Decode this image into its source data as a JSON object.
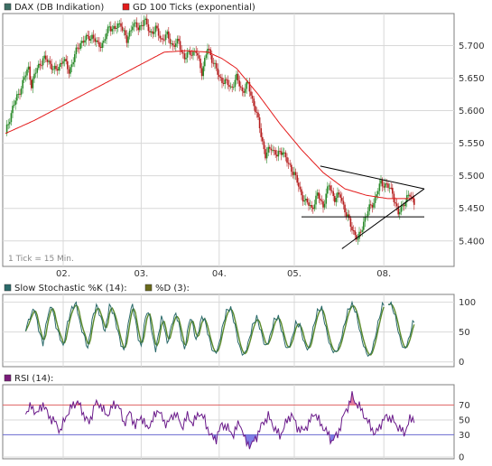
{
  "chart_data": [
    {
      "type": "candlestick",
      "legend": [
        {
          "label": "DAX (DB Indikation)",
          "color": "#3c6e64"
        },
        {
          "label": "GD 100 Ticks (exponential)",
          "color": "#e31b1b"
        }
      ],
      "note": "1 Tick = 15 Min.",
      "x_ticks": [
        "02.",
        "03.",
        "04.",
        "05.",
        "08."
      ],
      "y_ticks": [
        "5.700",
        "5.650",
        "5.600",
        "5.550",
        "5.500",
        "5.450",
        "5.400"
      ],
      "y_tick_values": [
        5700,
        5650,
        5600,
        5550,
        5500,
        5450,
        5400
      ],
      "ylim": [
        5365,
        5745
      ],
      "up_color": "#2a8a2a",
      "down_color": "#b51e1e",
      "close_anchors": [
        [
          0,
          5565
        ],
        [
          5,
          5605
        ],
        [
          9,
          5625
        ],
        [
          13,
          5650
        ],
        [
          16,
          5665
        ],
        [
          18,
          5640
        ],
        [
          22,
          5665
        ],
        [
          26,
          5680
        ],
        [
          30,
          5675
        ],
        [
          35,
          5660
        ],
        [
          40,
          5680
        ],
        [
          44,
          5660
        ],
        [
          48,
          5685
        ],
        [
          52,
          5705
        ],
        [
          56,
          5710
        ],
        [
          60,
          5715
        ],
        [
          64,
          5700
        ],
        [
          68,
          5705
        ],
        [
          72,
          5730
        ],
        [
          76,
          5725
        ],
        [
          80,
          5735
        ],
        [
          84,
          5705
        ],
        [
          88,
          5735
        ],
        [
          92,
          5725
        ],
        [
          96,
          5740
        ],
        [
          100,
          5720
        ],
        [
          104,
          5725
        ],
        [
          108,
          5710
        ],
        [
          112,
          5715
        ],
        [
          116,
          5700
        ],
        [
          120,
          5705
        ],
        [
          124,
          5680
        ],
        [
          128,
          5690
        ],
        [
          132,
          5690
        ],
        [
          136,
          5660
        ],
        [
          140,
          5695
        ],
        [
          144,
          5675
        ],
        [
          148,
          5650
        ],
        [
          152,
          5645
        ],
        [
          156,
          5635
        ],
        [
          160,
          5650
        ],
        [
          164,
          5630
        ],
        [
          168,
          5640
        ],
        [
          172,
          5610
        ],
        [
          176,
          5575
        ],
        [
          180,
          5530
        ],
        [
          184,
          5545
        ],
        [
          188,
          5530
        ],
        [
          192,
          5540
        ],
        [
          196,
          5515
        ],
        [
          200,
          5505
        ],
        [
          204,
          5475
        ],
        [
          208,
          5460
        ],
        [
          212,
          5450
        ],
        [
          216,
          5470
        ],
        [
          220,
          5455
        ],
        [
          224,
          5485
        ],
        [
          228,
          5465
        ],
        [
          232,
          5470
        ],
        [
          236,
          5440
        ],
        [
          240,
          5420
        ],
        [
          244,
          5400
        ],
        [
          248,
          5430
        ],
        [
          252,
          5450
        ],
        [
          256,
          5465
        ],
        [
          260,
          5490
        ],
        [
          264,
          5485
        ],
        [
          268,
          5475
        ],
        [
          272,
          5440
        ],
        [
          276,
          5460
        ],
        [
          280,
          5470
        ],
        [
          283,
          5460
        ]
      ],
      "ema_anchors": [
        [
          0,
          5565
        ],
        [
          20,
          5585
        ],
        [
          50,
          5620
        ],
        [
          80,
          5655
        ],
        [
          110,
          5690
        ],
        [
          125,
          5692
        ],
        [
          140,
          5690
        ],
        [
          150,
          5680
        ],
        [
          160,
          5665
        ],
        [
          175,
          5625
        ],
        [
          190,
          5580
        ],
        [
          205,
          5540
        ],
        [
          220,
          5505
        ],
        [
          235,
          5480
        ],
        [
          250,
          5470
        ],
        [
          265,
          5465
        ],
        [
          283,
          5465
        ]
      ],
      "trendlines": [
        {
          "from": [
            218,
            5515
          ],
          "to": [
            290,
            5480
          ]
        },
        {
          "from": [
            233,
            5388
          ],
          "to": [
            290,
            5480
          ]
        },
        {
          "from": [
            205,
            5437
          ],
          "to": [
            290,
            5437
          ]
        }
      ]
    },
    {
      "type": "line",
      "legend": [
        {
          "label": "Slow Stochastic %K (14):",
          "color": "#2a6a6a"
        },
        {
          "label": "%D (3):",
          "color": "#6a6a1a"
        }
      ],
      "y_ticks": [
        "100",
        "50",
        "0"
      ],
      "y_tick_values": [
        100,
        50,
        0
      ],
      "ylim": [
        -5,
        110
      ],
      "colors": {
        "k": "#2a6a6a",
        "d": "#5a8a2a"
      },
      "k_anchors": [
        [
          14,
          55
        ],
        [
          17,
          75
        ],
        [
          20,
          90
        ],
        [
          23,
          55
        ],
        [
          26,
          30
        ],
        [
          29,
          75
        ],
        [
          32,
          95
        ],
        [
          35,
          60
        ],
        [
          38,
          40
        ],
        [
          40,
          25
        ],
        [
          43,
          65
        ],
        [
          46,
          90
        ],
        [
          49,
          98
        ],
        [
          52,
          60
        ],
        [
          55,
          40
        ],
        [
          57,
          22
        ],
        [
          60,
          70
        ],
        [
          63,
          95
        ],
        [
          66,
          75
        ],
        [
          69,
          50
        ],
        [
          72,
          95
        ],
        [
          75,
          80
        ],
        [
          78,
          50
        ],
        [
          80,
          30
        ],
        [
          82,
          18
        ],
        [
          84,
          45
        ],
        [
          86,
          80
        ],
        [
          88,
          95
        ],
        [
          90,
          70
        ],
        [
          92,
          40
        ],
        [
          94,
          25
        ],
        [
          96,
          60
        ],
        [
          98,
          85
        ],
        [
          100,
          75
        ],
        [
          102,
          40
        ],
        [
          104,
          20
        ],
        [
          106,
          45
        ],
        [
          108,
          75
        ],
        [
          110,
          60
        ],
        [
          112,
          30
        ],
        [
          114,
          50
        ],
        [
          116,
          70
        ],
        [
          118,
          80
        ],
        [
          120,
          65
        ],
        [
          122,
          40
        ],
        [
          124,
          20
        ],
        [
          126,
          50
        ],
        [
          128,
          75
        ],
        [
          130,
          60
        ],
        [
          132,
          35
        ],
        [
          134,
          55
        ],
        [
          136,
          75
        ],
        [
          138,
          70
        ],
        [
          141,
          40
        ],
        [
          144,
          15
        ],
        [
          147,
          20
        ],
        [
          150,
          55
        ],
        [
          153,
          85
        ],
        [
          156,
          90
        ],
        [
          159,
          60
        ],
        [
          162,
          25
        ],
        [
          165,
          10
        ],
        [
          168,
          30
        ],
        [
          171,
          60
        ],
        [
          174,
          75
        ],
        [
          177,
          50
        ],
        [
          180,
          25
        ],
        [
          183,
          40
        ],
        [
          186,
          70
        ],
        [
          189,
          75
        ],
        [
          192,
          45
        ],
        [
          195,
          20
        ],
        [
          198,
          35
        ],
        [
          201,
          65
        ],
        [
          204,
          60
        ],
        [
          207,
          30
        ],
        [
          210,
          20
        ],
        [
          213,
          55
        ],
        [
          216,
          85
        ],
        [
          219,
          90
        ],
        [
          222,
          55
        ],
        [
          225,
          25
        ],
        [
          228,
          15
        ],
        [
          231,
          25
        ],
        [
          234,
          55
        ],
        [
          237,
          85
        ],
        [
          240,
          98
        ],
        [
          243,
          80
        ],
        [
          246,
          45
        ],
        [
          249,
          20
        ],
        [
          252,
          8
        ],
        [
          255,
          30
        ],
        [
          258,
          65
        ],
        [
          261,
          95
        ],
        [
          264,
          98
        ],
        [
          267,
          98
        ],
        [
          270,
          75
        ],
        [
          273,
          40
        ],
        [
          276,
          20
        ],
        [
          279,
          35
        ],
        [
          282,
          65
        ],
        [
          283,
          68
        ]
      ],
      "segment_breaks": [
        14,
        40,
        85,
        120,
        165,
        205,
        262
      ],
      "gap_start": 262,
      "gap_end": 265
    },
    {
      "type": "line",
      "legend": [
        {
          "label": "RSI (14):",
          "color": "#7a1a7a"
        }
      ],
      "y_ticks": [
        "70",
        "50",
        "30",
        "0"
      ],
      "y_tick_values": [
        70,
        50,
        30,
        0
      ],
      "ylim": [
        0,
        95
      ],
      "upper_level": 70,
      "lower_level": 30,
      "line_color": "#6a1a8a",
      "level_upper_color": "#e06a6a",
      "level_lower_color": "#6a6ad0",
      "overbought_fill": "#e06a90",
      "oversold_fill": "#6a6ae0",
      "rsi_anchors": [
        [
          14,
          60
        ],
        [
          18,
          68
        ],
        [
          22,
          58
        ],
        [
          26,
          72
        ],
        [
          30,
          55
        ],
        [
          34,
          48
        ],
        [
          38,
          35
        ],
        [
          42,
          55
        ],
        [
          46,
          68
        ],
        [
          50,
          75
        ],
        [
          54,
          58
        ],
        [
          58,
          45
        ],
        [
          62,
          72
        ],
        [
          66,
          70
        ],
        [
          70,
          55
        ],
        [
          74,
          68
        ],
        [
          78,
          72
        ],
        [
          82,
          45
        ],
        [
          86,
          60
        ],
        [
          90,
          42
        ],
        [
          94,
          55
        ],
        [
          98,
          38
        ],
        [
          102,
          50
        ],
        [
          106,
          65
        ],
        [
          110,
          45
        ],
        [
          114,
          50
        ],
        [
          118,
          60
        ],
        [
          122,
          40
        ],
        [
          126,
          55
        ],
        [
          130,
          45
        ],
        [
          134,
          60
        ],
        [
          138,
          50
        ],
        [
          142,
          28
        ],
        [
          146,
          25
        ],
        [
          150,
          45
        ],
        [
          154,
          38
        ],
        [
          158,
          30
        ],
        [
          162,
          48
        ],
        [
          166,
          22
        ],
        [
          170,
          15
        ],
        [
          174,
          28
        ],
        [
          178,
          45
        ],
        [
          182,
          55
        ],
        [
          186,
          40
        ],
        [
          190,
          28
        ],
        [
          194,
          45
        ],
        [
          198,
          58
        ],
        [
          202,
          40
        ],
        [
          206,
          35
        ],
        [
          210,
          45
        ],
        [
          214,
          60
        ],
        [
          218,
          45
        ],
        [
          222,
          35
        ],
        [
          226,
          22
        ],
        [
          230,
          30
        ],
        [
          234,
          55
        ],
        [
          238,
          72
        ],
        [
          240,
          82
        ],
        [
          242,
          75
        ],
        [
          246,
          65
        ],
        [
          250,
          50
        ],
        [
          254,
          38
        ],
        [
          256,
          30
        ],
        [
          260,
          45
        ],
        [
          264,
          55
        ],
        [
          268,
          50
        ],
        [
          272,
          40
        ],
        [
          276,
          32
        ],
        [
          280,
          50
        ],
        [
          283,
          52
        ]
      ]
    }
  ]
}
